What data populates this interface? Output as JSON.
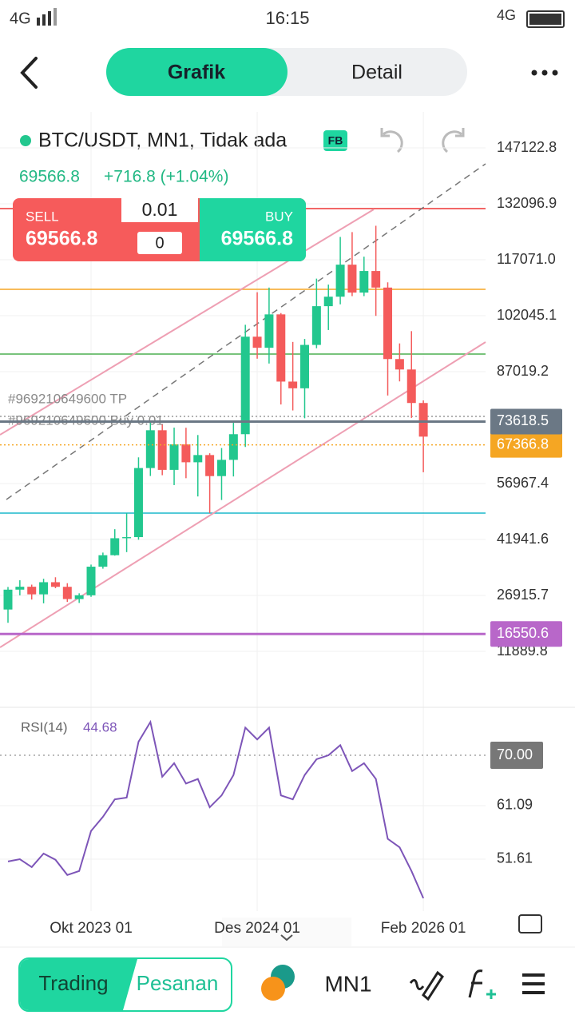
{
  "status": {
    "network_left": "4G",
    "time": "16:15",
    "network_right": "4G"
  },
  "header": {
    "tabs": [
      "Grafik",
      "Detail"
    ]
  },
  "symbol": {
    "name": "BTC/USDT, MN1, Tidak ada",
    "badge": "FB",
    "price": "69566.8",
    "change": "+716.8 (+1.04%)"
  },
  "trade": {
    "sell_label": "SELL",
    "sell_price": "69566.8",
    "lot": "0.01",
    "count": "0",
    "buy_label": "BUY",
    "buy_price": "69566.8"
  },
  "orders": {
    "tp": "#969210649600 TP",
    "buy": "#969210649600 Buy 0.01"
  },
  "chart_data": [
    {
      "type": "candlestick",
      "categories": [
        null,
        null,
        null,
        null,
        null,
        null,
        null,
        "Okt 2023 01",
        null,
        null,
        null,
        null,
        null,
        null,
        null,
        null,
        null,
        null,
        null,
        null,
        null,
        "Des 2024 01",
        null,
        null,
        null,
        null,
        null,
        null,
        null,
        null,
        null,
        null,
        null,
        null,
        null,
        "Feb 2026 01"
      ],
      "open": [
        23130,
        28470,
        29250,
        27210,
        30470,
        29230,
        25940,
        26960,
        34640,
        37720,
        42280,
        42580,
        61130,
        71280,
        60640,
        67490,
        62680,
        64620,
        58970,
        63330,
        70220,
        96410,
        93430,
        102400,
        84350,
        82550,
        94200,
        104600,
        107150,
        115750,
        108250,
        114050,
        109600,
        90400,
        87600,
        78600
      ],
      "high": [
        29190,
        30990,
        29820,
        31390,
        31800,
        30200,
        27490,
        35200,
        38430,
        44700,
        48970,
        64000,
        73780,
        72800,
        71980,
        71950,
        70000,
        65100,
        66500,
        73600,
        99600,
        108350,
        109600,
        102750,
        95000,
        95800,
        112000,
        110400,
        123200,
        124500,
        117900,
        126200,
        111000,
        94600,
        97900,
        79300
      ],
      "low": [
        19570,
        26940,
        25810,
        24800,
        28860,
        25170,
        24900,
        26540,
        34100,
        37600,
        38550,
        41880,
        59000,
        59200,
        56550,
        58400,
        53500,
        49000,
        52550,
        58870,
        66800,
        90500,
        89200,
        78200,
        76600,
        74500,
        93300,
        98200,
        105100,
        107300,
        107300,
        102000,
        80600,
        84400,
        74600,
        60000
      ],
      "close": [
        28470,
        29250,
        27210,
        30470,
        29230,
        25940,
        26960,
        34640,
        37720,
        42280,
        42580,
        61130,
        71280,
        60640,
        67490,
        62680,
        64620,
        58970,
        63330,
        70220,
        96410,
        93430,
        102400,
        84350,
        82550,
        94200,
        104600,
        107150,
        115750,
        108250,
        114050,
        109600,
        90400,
        87600,
        78600,
        69566.8
      ],
      "up_color": "#22c78e",
      "down_color": "#f45b5b",
      "ylim": [
        -2057,
        156782
      ],
      "yticks": [
        147122.8,
        132096.9,
        {
          "value": 117071,
          "label": "117071.0"
        },
        102045.1,
        87019.2,
        56967.4,
        41941.6,
        26915.7,
        11889.8
      ],
      "levels": [
        {
          "value": 67366.8,
          "color": "#f5a623"
        },
        {
          "value": 73618.5,
          "color": "#6b7885"
        },
        {
          "value": 16550.6,
          "color": "#b867c9"
        }
      ],
      "grid": true
    },
    {
      "type": "line",
      "name": "RSI(14)",
      "color": "#7d55b8",
      "values": [
        51.2,
        51.6,
        50.2,
        52.6,
        51.5,
        48.8,
        49.5,
        56.6,
        59.1,
        62.2,
        62.5,
        72.4,
        75.9,
        66.2,
        68.6,
        65.0,
        65.8,
        60.8,
        62.9,
        66.5,
        74.9,
        72.8,
        74.9,
        62.9,
        62.2,
        66.5,
        69.3,
        70.0,
        71.8,
        67.2,
        68.6,
        65.8,
        55.2,
        53.7,
        49.5,
        44.68
      ],
      "ylim": [
        42.4,
        78.5
      ],
      "yticks": [
        {
          "value": 70,
          "label": "70.00"
        },
        61.09,
        51.61
      ]
    }
  ],
  "bottom": {
    "trading": "Trading",
    "orders": "Pesanan",
    "timeframe": "MN1"
  }
}
